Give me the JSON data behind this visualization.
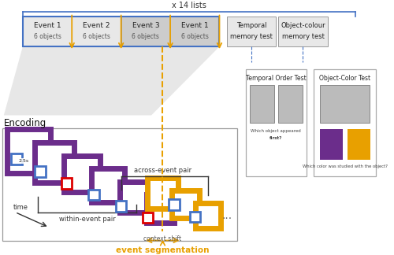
{
  "bg_color": "#ffffff",
  "orange": "#E8A000",
  "purple": "#6B2D8B",
  "blue_frame": "#4472C4",
  "red_frame": "#DD0000",
  "gray_dark": "#b0b0b0",
  "gray_med": "#cccccc",
  "gray_light": "#e8e8e8",
  "title": "x 14 lists",
  "encoding_label": "Encoding",
  "across_label": "across-event pair",
  "within_label": "within-event pair",
  "time_label": "time",
  "context_label": "context shift",
  "eventseg_label": "event segmentation",
  "temporal_title": "Temporal Order Test",
  "color_title": "Object-Color Test",
  "temporal_q": "Which object appeared ",
  "temporal_q_bold": "first?",
  "color_q1": "Which ",
  "color_q_bold": "color",
  "color_q2": " was studied with the object?"
}
